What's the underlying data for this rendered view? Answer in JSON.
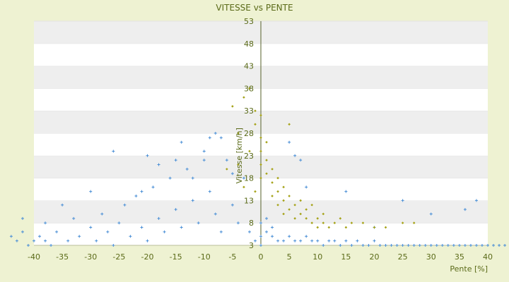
{
  "chart_data": {
    "type": "scatter",
    "title": "VITESSE vs PENTE",
    "xlabel": "Pente [%]",
    "ylabel": "Vitesse [km/h]",
    "xlim": [
      -40,
      40
    ],
    "ylim": [
      3,
      53
    ],
    "x_ticks": [
      "-40",
      "-35",
      "-30",
      "-25",
      "-20",
      "-15",
      "-10",
      "-5",
      "0",
      "5",
      "10",
      "15",
      "20",
      "25",
      "30",
      "35",
      "40"
    ],
    "y_ticks": [
      "3",
      "8",
      "13",
      "18",
      "23",
      "28",
      "33",
      "38",
      "43",
      "48",
      "53"
    ],
    "grid": "horizontal-bands",
    "legend": "none",
    "colors": {
      "background": "#eef2d2",
      "band": "#eeeeee",
      "series_blue": "#4a8fd6",
      "series_olive": "#a6a31a",
      "axis": "#55602a",
      "text": "#5a6a18"
    },
    "series": [
      {
        "color": "#4a8fd6",
        "marker": "plus",
        "points": [
          [
            -44,
            5
          ],
          [
            -43,
            4
          ],
          [
            -42,
            6
          ],
          [
            -41,
            3
          ],
          [
            -40,
            4
          ],
          [
            -39,
            5
          ],
          [
            -38,
            4
          ],
          [
            -37,
            3
          ],
          [
            -36,
            6
          ],
          [
            -34,
            4
          ],
          [
            -33,
            9
          ],
          [
            -32,
            5
          ],
          [
            -30,
            7
          ],
          [
            -29,
            4
          ],
          [
            -28,
            10
          ],
          [
            -27,
            6
          ],
          [
            -26,
            3
          ],
          [
            -25,
            8
          ],
          [
            -24,
            12
          ],
          [
            -23,
            5
          ],
          [
            -22,
            14
          ],
          [
            -21,
            7
          ],
          [
            -20,
            4
          ],
          [
            -19,
            16
          ],
          [
            -18,
            9
          ],
          [
            -17,
            6
          ],
          [
            -16,
            18
          ],
          [
            -15,
            11
          ],
          [
            -14,
            7
          ],
          [
            -13,
            20
          ],
          [
            -12,
            13
          ],
          [
            -11,
            8
          ],
          [
            -10,
            24
          ],
          [
            -9,
            15
          ],
          [
            -8,
            10
          ],
          [
            -7,
            6
          ],
          [
            -6,
            22
          ],
          [
            -5,
            12
          ],
          [
            -4,
            8
          ],
          [
            -3,
            18
          ],
          [
            -2,
            6
          ],
          [
            -1,
            4
          ],
          [
            0,
            3
          ],
          [
            0,
            5
          ],
          [
            0,
            8
          ],
          [
            1,
            6
          ],
          [
            2,
            5
          ],
          [
            3,
            4
          ],
          [
            4,
            4
          ],
          [
            5,
            5
          ],
          [
            6,
            4
          ],
          [
            7,
            4
          ],
          [
            8,
            5
          ],
          [
            9,
            4
          ],
          [
            10,
            4
          ],
          [
            11,
            3
          ],
          [
            12,
            4
          ],
          [
            13,
            4
          ],
          [
            14,
            3
          ],
          [
            15,
            4
          ],
          [
            16,
            3
          ],
          [
            17,
            4
          ],
          [
            18,
            3
          ],
          [
            19,
            3
          ],
          [
            20,
            4
          ],
          [
            21,
            3
          ],
          [
            22,
            3
          ],
          [
            23,
            3
          ],
          [
            24,
            3
          ],
          [
            25,
            3
          ],
          [
            26,
            3
          ],
          [
            27,
            3
          ],
          [
            28,
            3
          ],
          [
            29,
            3
          ],
          [
            30,
            3
          ],
          [
            31,
            3
          ],
          [
            32,
            3
          ],
          [
            33,
            3
          ],
          [
            34,
            3
          ],
          [
            35,
            3
          ],
          [
            36,
            3
          ],
          [
            37,
            3
          ],
          [
            38,
            3
          ],
          [
            39,
            3
          ],
          [
            40,
            3
          ],
          [
            41,
            3
          ],
          [
            42,
            3
          ],
          [
            43,
            3
          ],
          [
            -20,
            23
          ],
          [
            -15,
            22
          ],
          [
            -8,
            28
          ],
          [
            -9,
            27
          ],
          [
            1,
            9
          ],
          [
            2,
            7
          ],
          [
            5,
            26
          ],
          [
            6,
            23
          ],
          [
            7,
            22
          ],
          [
            8,
            16
          ],
          [
            15,
            15
          ],
          [
            20,
            7
          ],
          [
            25,
            13
          ],
          [
            30,
            10
          ],
          [
            36,
            11
          ],
          [
            38,
            13
          ],
          [
            -26,
            24
          ],
          [
            -21,
            15
          ],
          [
            -18,
            21
          ],
          [
            -14,
            26
          ],
          [
            -12,
            18
          ],
          [
            -10,
            22
          ],
          [
            -7,
            27
          ],
          [
            -5,
            19
          ],
          [
            -30,
            15
          ],
          [
            -35,
            12
          ],
          [
            -38,
            8
          ],
          [
            -42,
            9
          ]
        ]
      },
      {
        "color": "#a6a31a",
        "marker": "diamond",
        "points": [
          [
            -5,
            34
          ],
          [
            -4,
            28
          ],
          [
            -3,
            36
          ],
          [
            -2,
            38
          ],
          [
            -1,
            33
          ],
          [
            -1,
            30
          ],
          [
            0,
            32
          ],
          [
            0,
            27
          ],
          [
            0,
            24
          ],
          [
            0,
            21
          ],
          [
            0,
            18
          ],
          [
            1,
            26
          ],
          [
            1,
            22
          ],
          [
            1,
            19
          ],
          [
            2,
            20
          ],
          [
            2,
            17
          ],
          [
            2,
            14
          ],
          [
            3,
            18
          ],
          [
            3,
            15
          ],
          [
            3,
            12
          ],
          [
            4,
            16
          ],
          [
            4,
            13
          ],
          [
            4,
            10
          ],
          [
            5,
            30
          ],
          [
            5,
            14
          ],
          [
            5,
            11
          ],
          [
            6,
            12
          ],
          [
            6,
            9
          ],
          [
            7,
            13
          ],
          [
            7,
            10
          ],
          [
            8,
            9
          ],
          [
            8,
            11
          ],
          [
            9,
            8
          ],
          [
            9,
            12
          ],
          [
            10,
            7
          ],
          [
            10,
            9
          ],
          [
            11,
            10
          ],
          [
            11,
            8
          ],
          [
            12,
            7
          ],
          [
            13,
            8
          ],
          [
            14,
            9
          ],
          [
            15,
            7
          ],
          [
            16,
            8
          ],
          [
            18,
            8
          ],
          [
            20,
            7
          ],
          [
            22,
            7
          ],
          [
            25,
            8
          ],
          [
            27,
            8
          ],
          [
            -6,
            20
          ],
          [
            -4,
            21
          ],
          [
            -3,
            16
          ],
          [
            -2,
            24
          ],
          [
            -1,
            15
          ]
        ]
      }
    ]
  }
}
